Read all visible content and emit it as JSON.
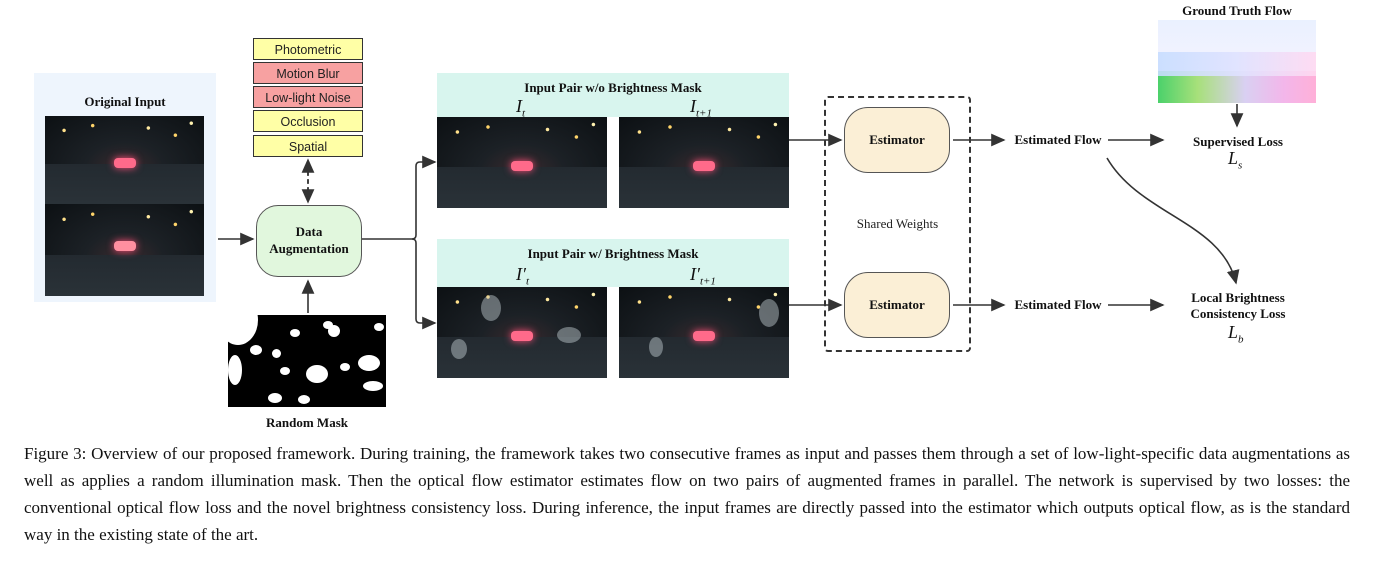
{
  "original_input": {
    "label": "Original Input"
  },
  "augmentations": [
    {
      "label": "Photometric",
      "color": "#ffffa6"
    },
    {
      "label": "Motion Blur",
      "color": "#f7a1a1"
    },
    {
      "label": "Low-light Noise",
      "color": "#f7a1a1"
    },
    {
      "label": "Occlusion",
      "color": "#ffffa6"
    },
    {
      "label": "Spatial",
      "color": "#ffffa6"
    }
  ],
  "data_augmentation": {
    "line1": "Data",
    "line2": "Augmentation"
  },
  "random_mask": {
    "label": "Random Mask"
  },
  "pair_top": {
    "title": "Input Pair w/o Brightness Mask",
    "frame1": "I",
    "frame1_sub": "t",
    "frame2": "I",
    "frame2_sub": "t+1"
  },
  "pair_bottom": {
    "title": "Input Pair w/ Brightness Mask",
    "frame1": "I′",
    "frame1_sub": "t",
    "frame2": "I′",
    "frame2_sub": "t+1"
  },
  "estimator_top": {
    "label": "Estimator"
  },
  "estimator_bottom": {
    "label": "Estimator"
  },
  "shared_weights": {
    "label": "Shared Weights"
  },
  "flow_top": {
    "label": "Estimated Flow"
  },
  "flow_bottom": {
    "label": "Estimated Flow"
  },
  "ground_truth": {
    "label": "Ground Truth Flow"
  },
  "supervised_loss": {
    "label": "Supervised Loss",
    "symbol": "L",
    "symbol_sub": "s"
  },
  "brightness_loss": {
    "line1": "Local Brightness",
    "line2": "Consistency Loss",
    "symbol": "L",
    "symbol_sub": "b"
  },
  "caption": "Figure 3: Overview of our proposed framework. During training, the framework takes two consecutive frames as input and passes them through a set of low-light-specific data augmentations as well as applies a random illumination mask. Then the optical flow estimator estimates flow on two pairs of augmented frames in parallel. The network is supervised by two losses: the conventional optical flow loss and the novel brightness consistency loss. During inference, the input frames are directly passed into the estimator which outputs optical flow, as is the standard way in the existing state of the art."
}
